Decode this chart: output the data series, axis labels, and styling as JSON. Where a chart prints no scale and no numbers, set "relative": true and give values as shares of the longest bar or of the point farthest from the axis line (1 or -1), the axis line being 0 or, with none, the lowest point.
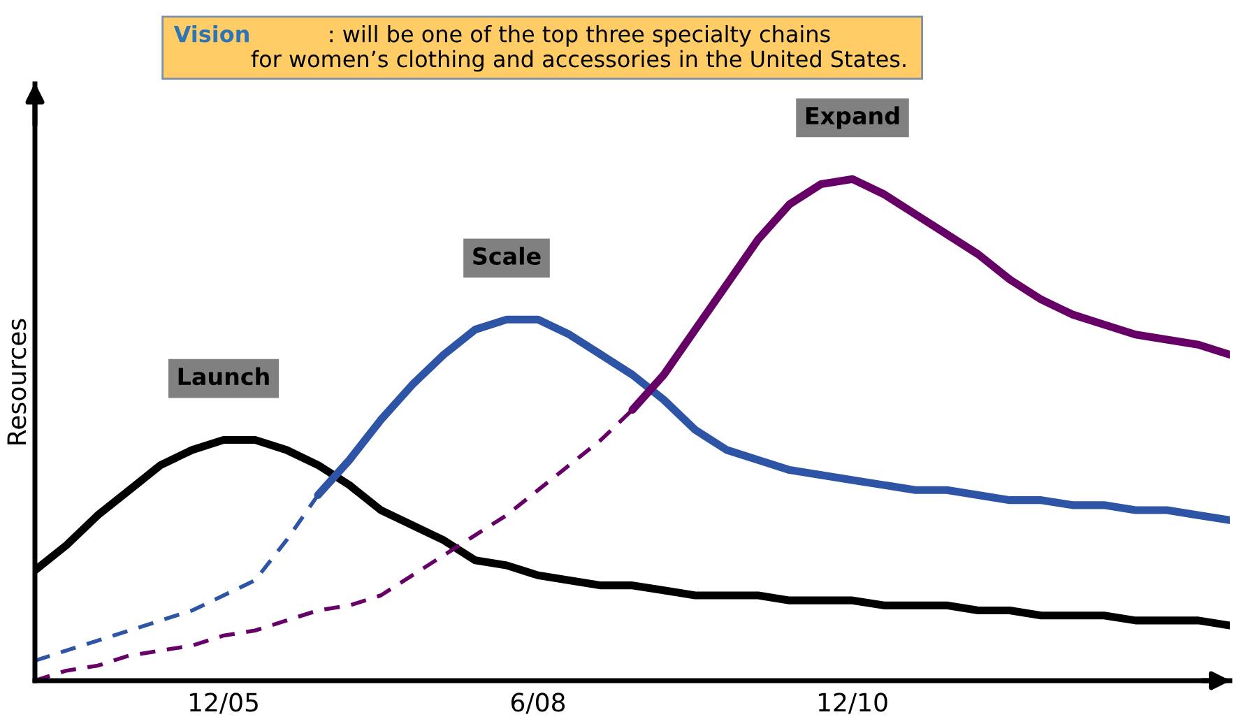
{
  "chart_data": {
    "type": "line",
    "relative": true,
    "title": "Vision",
    "subtitle": ": will be one of the top three specialty chains\nfor women’s clothing and accessories in the United States.",
    "ylabel": "Resources",
    "categories": [
      null,
      null,
      null,
      null,
      null,
      null,
      "12/05",
      null,
      null,
      null,
      null,
      null,
      null,
      null,
      null,
      null,
      "6/08",
      null,
      null,
      null,
      null,
      null,
      null,
      null,
      null,
      null,
      "12/10",
      null,
      null,
      null,
      null,
      null,
      null,
      null,
      null,
      null,
      null,
      null,
      null
    ],
    "annotations": [
      "Launch",
      "Scale",
      "Expand"
    ],
    "grid": false,
    "series": [
      {
        "color": "#000000",
        "line_style": "solid",
        "values": [
          0.22,
          0.27,
          0.33,
          0.38,
          0.43,
          0.46,
          0.48,
          0.48,
          0.46,
          0.43,
          0.39,
          0.34,
          0.31,
          0.28,
          0.24,
          0.23,
          0.21,
          0.2,
          0.19,
          0.19,
          0.18,
          0.17,
          0.17,
          0.17,
          0.16,
          0.16,
          0.16,
          0.15,
          0.15,
          0.15,
          0.14,
          0.14,
          0.13,
          0.13,
          0.13,
          0.12,
          0.12,
          0.12,
          0.11
        ]
      },
      {
        "color": "#2e54a5",
        "line_style": "dashed",
        "values": [
          0.04,
          0.06,
          0.08,
          0.1,
          0.12,
          0.14,
          0.17,
          0.2,
          0.28,
          0.37,
          null,
          null,
          null,
          null,
          null,
          null,
          null,
          null,
          null,
          null,
          null,
          null,
          null,
          null,
          null,
          null,
          null,
          null,
          null,
          null,
          null,
          null,
          null,
          null,
          null,
          null,
          null,
          null,
          null
        ]
      },
      {
        "color": "#2e54a5",
        "line_style": "solid",
        "values": [
          null,
          null,
          null,
          null,
          null,
          null,
          null,
          null,
          null,
          0.37,
          0.44,
          0.52,
          0.59,
          0.65,
          0.7,
          0.72,
          0.72,
          0.69,
          0.65,
          0.61,
          0.56,
          0.5,
          0.46,
          0.44,
          0.42,
          0.41,
          0.4,
          0.39,
          0.38,
          0.38,
          0.37,
          0.36,
          0.36,
          0.35,
          0.35,
          0.34,
          0.34,
          0.33,
          0.32
        ]
      },
      {
        "color": "#660066",
        "line_style": "dashed",
        "values": [
          0,
          0.02,
          0.03,
          0.05,
          0.06,
          0.07,
          0.09,
          0.1,
          0.12,
          0.14,
          0.15,
          0.17,
          0.21,
          0.25,
          0.29,
          0.33,
          0.38,
          0.43,
          0.48,
          0.54,
          null,
          null,
          null,
          null,
          null,
          null,
          null,
          null,
          null,
          null,
          null,
          null,
          null,
          null,
          null,
          null,
          null,
          null,
          null
        ]
      },
      {
        "color": "#660066",
        "line_style": "solid",
        "values": [
          null,
          null,
          null,
          null,
          null,
          null,
          null,
          null,
          null,
          null,
          null,
          null,
          null,
          null,
          null,
          null,
          null,
          null,
          null,
          0.54,
          0.61,
          0.7,
          0.79,
          0.88,
          0.95,
          0.99,
          1,
          0.97,
          0.93,
          0.89,
          0.85,
          0.8,
          0.76,
          0.73,
          0.71,
          0.69,
          0.68,
          0.67,
          0.65
        ]
      }
    ]
  }
}
